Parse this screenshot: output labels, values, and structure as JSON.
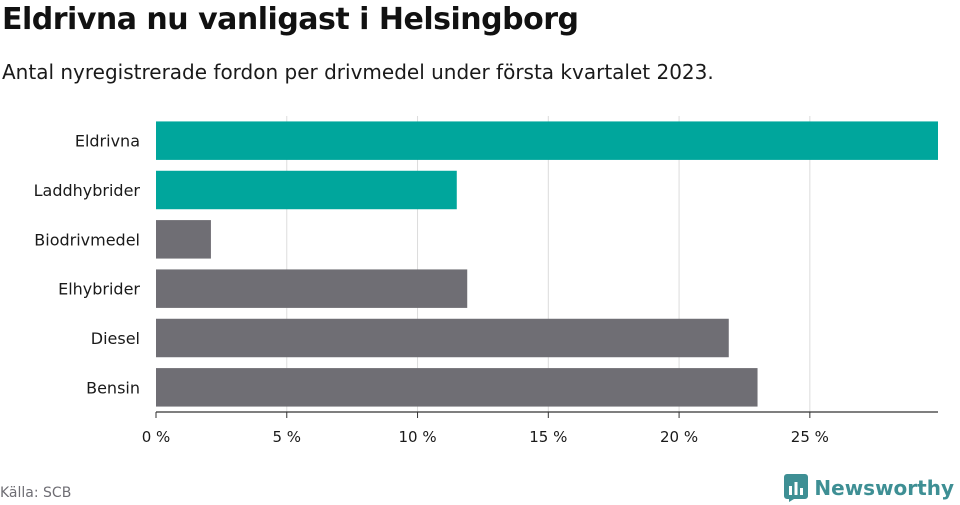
{
  "title": "Eldrivna nu vanligast i Helsingborg",
  "subtitle": "Antal nyregistrerade fordon per drivmedel under första kvartalet 2023.",
  "source": "Källa: SCB",
  "brand": {
    "name": "Newsworthy",
    "icon": "bar-chart-logo-icon",
    "color": "#3e8f94"
  },
  "chart_data": {
    "type": "bar",
    "orientation": "horizontal",
    "title": "Eldrivna nu vanligast i Helsingborg",
    "subtitle": "Antal nyregistrerade fordon per drivmedel under första kvartalet 2023.",
    "categories": [
      "Eldrivna",
      "Laddhybrider",
      "Biodrivmedel",
      "Elhybrider",
      "Diesel",
      "Bensin"
    ],
    "values": [
      29.9,
      11.5,
      2.1,
      11.9,
      21.9,
      23.0
    ],
    "colors": [
      "#00a69c",
      "#00a69c",
      "#6f6e74",
      "#6f6e74",
      "#6f6e74",
      "#6f6e74"
    ],
    "xticks": [
      0,
      5,
      10,
      15,
      20,
      25
    ],
    "xtick_labels": [
      "0 %",
      "5 %",
      "10 %",
      "15 %",
      "20 %",
      "25 %"
    ],
    "xlim": [
      0,
      29.9
    ],
    "grid": true,
    "xlabel": "",
    "ylabel": ""
  }
}
